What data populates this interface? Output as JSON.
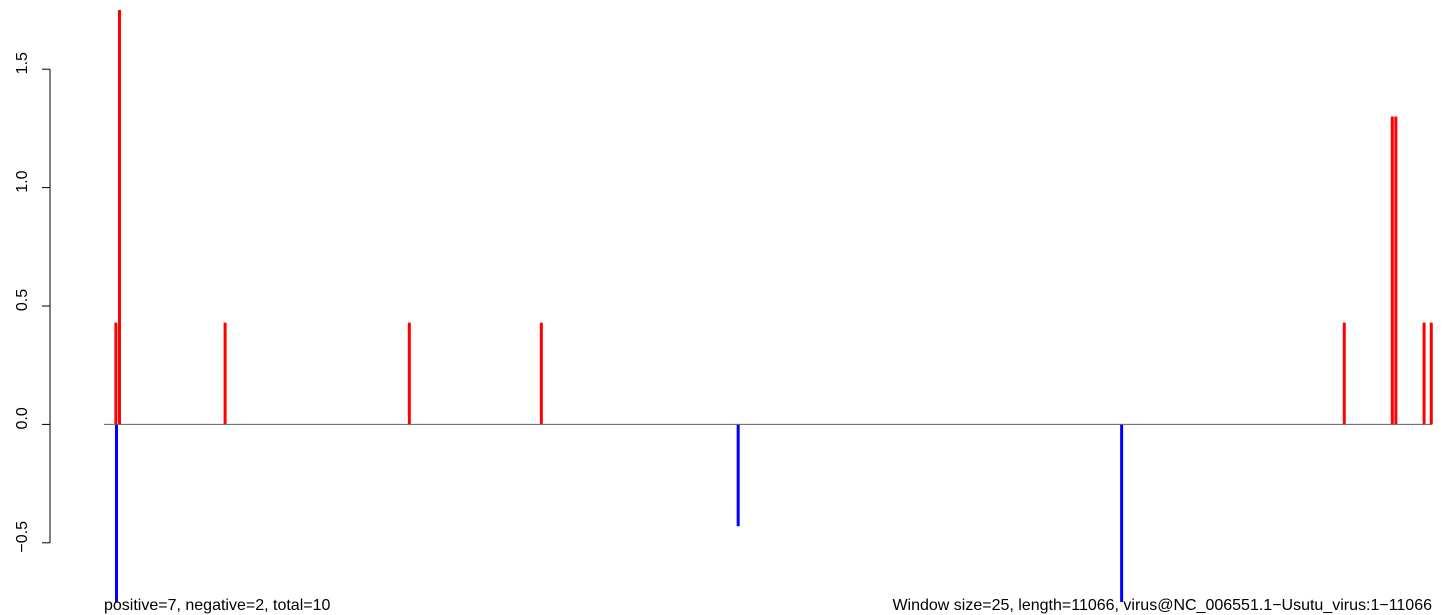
{
  "chart_data": {
    "type": "bar",
    "title": "",
    "xlabel": "",
    "ylabel": "",
    "xlim": [
      1,
      11066
    ],
    "ylim": [
      -0.75,
      1.75
    ],
    "yticks": [
      -0.5,
      0.0,
      0.5,
      1.0,
      1.5
    ],
    "ytick_labels": [
      "−0.5",
      "0.0",
      "0.5",
      "1.0",
      "1.5"
    ],
    "grid": false,
    "baseline": 0,
    "colors": {
      "positive": "#ff0000",
      "negative": "#0000ff",
      "axis": "#000000",
      "baseline": "#606060"
    },
    "series": [
      {
        "name": "positive",
        "points": [
          {
            "x": 100,
            "y": 0.43
          },
          {
            "x": 130,
            "y": 1.75
          },
          {
            "x": 1010,
            "y": 0.43
          },
          {
            "x": 2545,
            "y": 0.43
          },
          {
            "x": 3645,
            "y": 0.43
          },
          {
            "x": 10335,
            "y": 0.43
          },
          {
            "x": 10735,
            "y": 1.3
          },
          {
            "x": 10765,
            "y": 1.3
          },
          {
            "x": 11000,
            "y": 0.43
          },
          {
            "x": 11060,
            "y": 0.43
          }
        ]
      },
      {
        "name": "negative",
        "points": [
          {
            "x": 105,
            "y": -0.75
          },
          {
            "x": 5285,
            "y": -0.43
          },
          {
            "x": 8480,
            "y": -0.75
          }
        ]
      }
    ],
    "footer_left": "positive=7, negative=2, total=10",
    "footer_right": "Window size=25, length=11066, virus@NC_006551.1−Usutu_virus:1−11066"
  }
}
